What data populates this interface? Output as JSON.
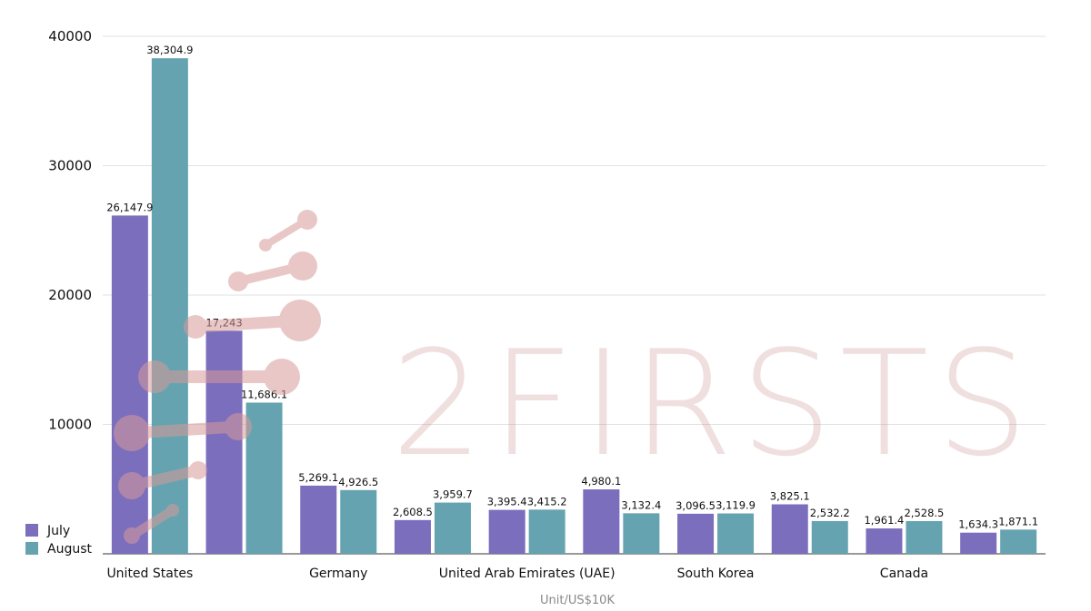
{
  "chart_data": {
    "type": "bar",
    "categories": [
      "United States",
      "",
      "Germany",
      "",
      "United Arab Emirates (UAE)",
      "",
      "South Korea",
      "",
      "Canada",
      ""
    ],
    "series": [
      {
        "name": "July",
        "color": "#7b6fbd",
        "values": [
          26147.9,
          17243,
          5269.1,
          2608.5,
          3395.4,
          4980.1,
          3096.5,
          3825.1,
          1961.4,
          1634.3
        ]
      },
      {
        "name": "August",
        "color": "#66a3b0",
        "values": [
          38304.9,
          11686.1,
          4926.5,
          3959.7,
          3415.2,
          3132.4,
          3119.9,
          2532.2,
          2528.5,
          1871.1
        ]
      }
    ],
    "data_labels": {
      "July": [
        "26,147.9",
        "17,243",
        "5,269.1",
        "2,608.5",
        "3,395.4",
        "4,980.1",
        "3,096.5",
        "3,825.1",
        "1,961.4",
        "1,634.3"
      ],
      "August": [
        "38,304.9",
        "11,686.1",
        "4,926.5",
        "3,959.7",
        "3,415.2",
        "3,132.4",
        "3,119.9",
        "2,532.2",
        "2,528.5",
        "1,871.1"
      ]
    },
    "yticks": [
      10000,
      20000,
      30000,
      40000
    ],
    "ytick_labels": [
      "10000",
      "20000",
      "30000",
      "40000"
    ],
    "ylim": [
      0,
      40000
    ],
    "grid": true,
    "legend_position": "bottom-left",
    "xlabel": "Unit/US$10K",
    "watermark": {
      "text": "2FIRSTS",
      "color": "#c47c7c"
    }
  }
}
